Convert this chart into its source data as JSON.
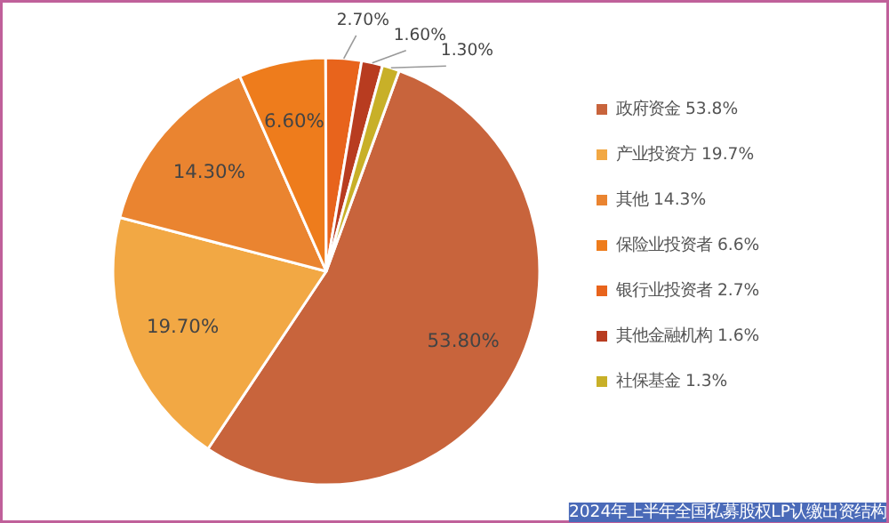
{
  "chart_data": {
    "type": "pie",
    "categories": [
      "政府资金 53.8%",
      "产业投资方 19.7%",
      "其他 14.3%",
      "保险业投资者 6.6%",
      "银行业投资者 2.7%",
      "其他金融机构 1.6%",
      "社保基金 1.3%"
    ],
    "values": [
      53.8,
      19.7,
      14.3,
      6.6,
      2.7,
      1.6,
      1.3
    ],
    "value_labels": [
      "53.80%",
      "19.70%",
      "14.30%",
      "6.60%",
      "2.70%",
      "1.60%",
      "1.30%"
    ],
    "colors": [
      "#c8643c",
      "#f2a844",
      "#ea8430",
      "#ee7c1c",
      "#e8641c",
      "#b83c20",
      "#c8b028"
    ],
    "legend": "right",
    "annotations": [
      "2024年上半年全国私募股权LP认缴出资结构"
    ]
  }
}
